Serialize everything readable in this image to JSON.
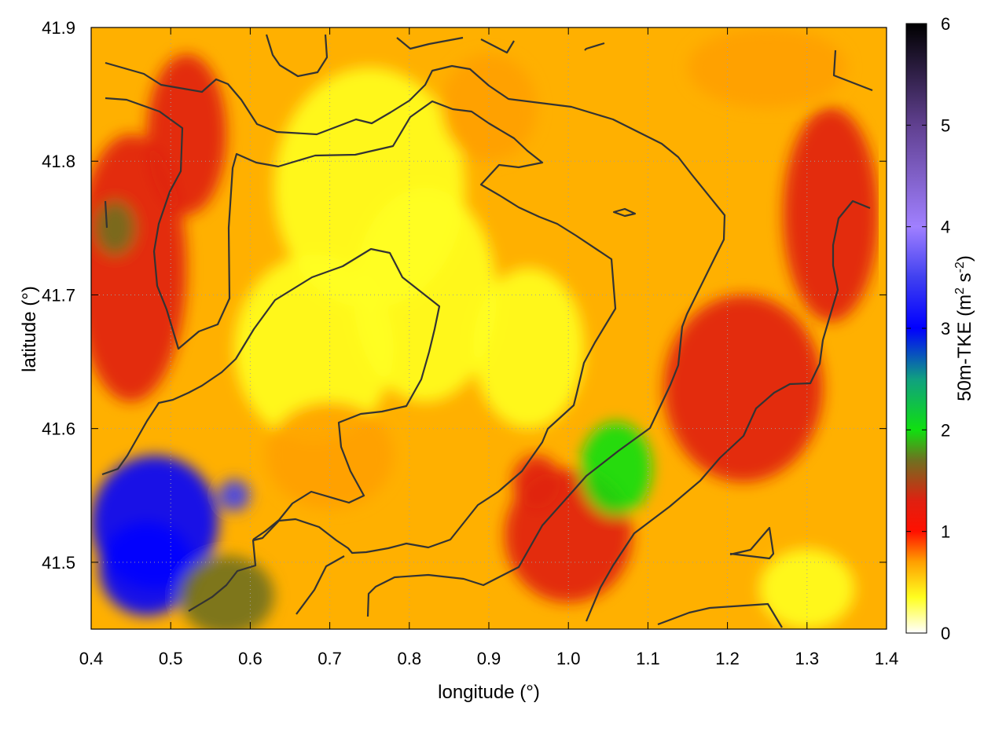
{
  "chart_data": {
    "type": "heatmap",
    "title": "",
    "xlabel": "longitude (°)",
    "ylabel": "latitude (°)",
    "xlim": [
      0.4,
      1.4
    ],
    "ylim": [
      41.45,
      41.9
    ],
    "xticks": [
      {
        "value": 0.4,
        "label": "0.4"
      },
      {
        "value": 0.5,
        "label": "0.5"
      },
      {
        "value": 0.6,
        "label": "0.6"
      },
      {
        "value": 0.7,
        "label": "0.7"
      },
      {
        "value": 0.8,
        "label": "0.8"
      },
      {
        "value": 0.9,
        "label": "0.9"
      },
      {
        "value": 1.0,
        "label": "1.0"
      },
      {
        "value": 1.1,
        "label": "1.1"
      },
      {
        "value": 1.2,
        "label": "1.2"
      },
      {
        "value": 1.3,
        "label": "1.3"
      },
      {
        "value": 1.4,
        "label": "1.4"
      }
    ],
    "yticks": [
      {
        "value": 41.5,
        "label": "41.5"
      },
      {
        "value": 41.6,
        "label": "41.6"
      },
      {
        "value": 41.7,
        "label": "41.7"
      },
      {
        "value": 41.8,
        "label": "41.8"
      },
      {
        "value": 41.9,
        "label": "41.9"
      }
    ],
    "grid": true,
    "colorbar": {
      "label_main": "50m-TKE (m",
      "label_sup1": "2",
      "label_mid": " s",
      "label_sup2": "-2",
      "label_end": ")",
      "range": [
        0,
        6
      ],
      "ticks": [
        {
          "value": 0,
          "label": "0"
        },
        {
          "value": 1,
          "label": "1"
        },
        {
          "value": 2,
          "label": "2"
        },
        {
          "value": 3,
          "label": "3"
        },
        {
          "value": 4,
          "label": "4"
        },
        {
          "value": 5,
          "label": "5"
        },
        {
          "value": 6,
          "label": "6"
        }
      ],
      "stops": [
        {
          "value": 0.0,
          "color": "#ffffff"
        },
        {
          "value": 0.35,
          "color": "#ffff20"
        },
        {
          "value": 0.7,
          "color": "#ffa000"
        },
        {
          "value": 1.0,
          "color": "#ff1000"
        },
        {
          "value": 1.3,
          "color": "#e02010"
        },
        {
          "value": 1.7,
          "color": "#707020"
        },
        {
          "value": 2.0,
          "color": "#10e010"
        },
        {
          "value": 2.5,
          "color": "#10a080"
        },
        {
          "value": 3.0,
          "color": "#0000ff"
        },
        {
          "value": 3.5,
          "color": "#4040f0"
        },
        {
          "value": 4.0,
          "color": "#a080ff"
        },
        {
          "value": 5.0,
          "color": "#604090"
        },
        {
          "value": 6.0,
          "color": "#000000"
        }
      ]
    },
    "field_blobs": [
      {
        "lon": 0.75,
        "lat": 41.78,
        "rlon": 0.12,
        "rlat": 0.09,
        "value": -0.5
      },
      {
        "lon": 0.68,
        "lat": 41.66,
        "rlon": 0.1,
        "rlat": 0.07,
        "value": -0.45
      },
      {
        "lon": 0.82,
        "lat": 41.7,
        "rlon": 0.09,
        "rlat": 0.08,
        "value": -0.4
      },
      {
        "lon": 0.95,
        "lat": 41.66,
        "rlon": 0.07,
        "rlat": 0.06,
        "value": -0.4
      },
      {
        "lon": 0.7,
        "lat": 41.58,
        "rlon": 0.08,
        "rlat": 0.04,
        "value": -0.2
      },
      {
        "lon": 0.9,
        "lat": 41.84,
        "rlon": 0.06,
        "rlat": 0.04,
        "value": -0.25
      },
      {
        "lon": 0.45,
        "lat": 41.72,
        "rlon": 0.07,
        "rlat": 0.1,
        "value": 0.55
      },
      {
        "lon": 0.52,
        "lat": 41.82,
        "rlon": 0.05,
        "rlat": 0.06,
        "value": 0.4
      },
      {
        "lon": 1.22,
        "lat": 41.63,
        "rlon": 0.1,
        "rlat": 0.07,
        "value": 0.45
      },
      {
        "lon": 1.33,
        "lat": 41.76,
        "rlon": 0.06,
        "rlat": 0.08,
        "value": 0.4
      },
      {
        "lon": 1.0,
        "lat": 41.52,
        "rlon": 0.08,
        "rlat": 0.05,
        "value": 0.45
      },
      {
        "lon": 1.06,
        "lat": 41.57,
        "rlon": 0.045,
        "rlat": 0.035,
        "value": 1.2
      },
      {
        "lon": 0.96,
        "lat": 41.56,
        "rlon": 0.03,
        "rlat": 0.02,
        "value": 0.6
      },
      {
        "lon": 0.48,
        "lat": 41.53,
        "rlon": 0.08,
        "rlat": 0.05,
        "value": 2.2
      },
      {
        "lon": 0.47,
        "lat": 41.495,
        "rlon": 0.06,
        "rlat": 0.035,
        "value": 1.9
      },
      {
        "lon": 0.57,
        "lat": 41.475,
        "rlon": 0.06,
        "rlat": 0.03,
        "value": 1.0
      },
      {
        "lon": 0.58,
        "lat": 41.55,
        "rlon": 0.02,
        "rlat": 0.012,
        "value": 2.8
      },
      {
        "lon": 0.43,
        "lat": 41.75,
        "rlon": 0.025,
        "rlat": 0.02,
        "value": 0.9
      },
      {
        "lon": 1.3,
        "lat": 41.48,
        "rlon": 0.06,
        "rlat": 0.03,
        "value": -0.4
      },
      {
        "lon": 1.25,
        "lat": 41.87,
        "rlon": 0.1,
        "rlat": 0.03,
        "value": -0.3
      }
    ]
  }
}
